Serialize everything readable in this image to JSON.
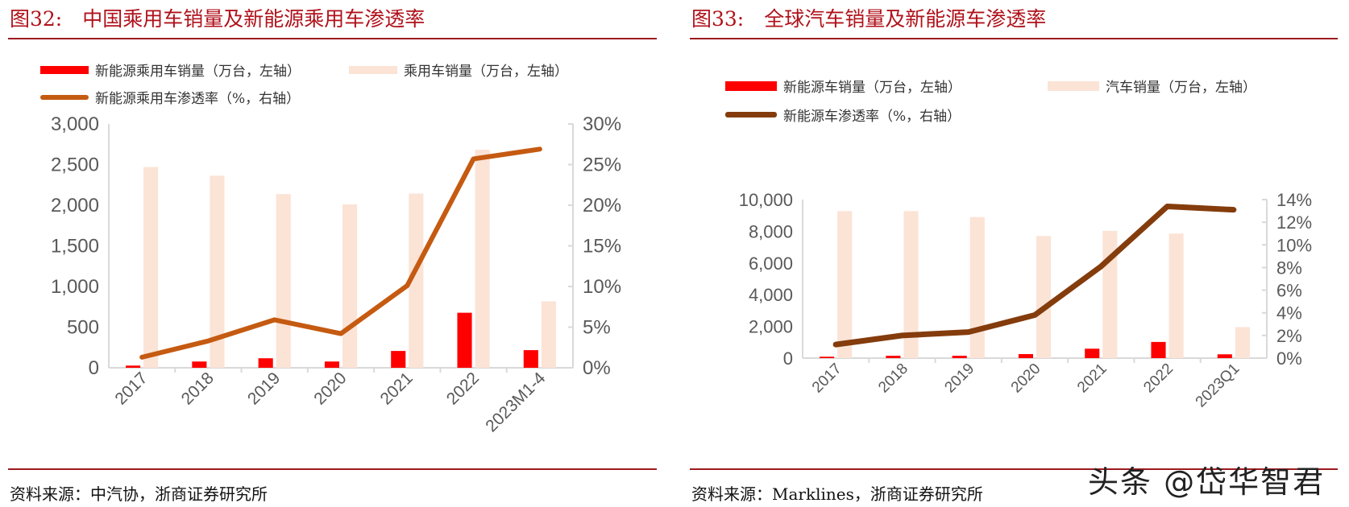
{
  "watermark": "头条 @岱华智君",
  "chart_data": [
    {
      "type": "bar+line",
      "title": "图32:　中国乘用车销量及新能源乘用车渗透率",
      "categories": [
        "2017",
        "2018",
        "2019",
        "2020",
        "2021",
        "2022",
        "2023M1-4"
      ],
      "series": [
        {
          "name": "新能源乘用车销量（万台，左轴）",
          "type": "bar",
          "axis": "left",
          "color": "#ff0000",
          "values": [
            27,
            77,
            117,
            77,
            207,
            677,
            217
          ]
        },
        {
          "name": "乘用车销量（万台，左轴）",
          "type": "bar",
          "axis": "left",
          "color": "#fbe3d6",
          "values": [
            2470,
            2363,
            2137,
            2010,
            2143,
            2683,
            817
          ]
        },
        {
          "name": "新能源乘用车渗透率（%，右轴）",
          "type": "line",
          "axis": "right",
          "color": "#c55a11",
          "values": [
            1.3,
            3.3,
            5.9,
            4.2,
            10.1,
            25.7,
            26.9
          ]
        }
      ],
      "yleft": {
        "range": [
          0,
          3000
        ],
        "ticks": [
          "0",
          "500",
          "1,000",
          "1,500",
          "2,000",
          "2,500",
          "3,000"
        ]
      },
      "yright": {
        "range": [
          0,
          30
        ],
        "ticks": [
          "0%",
          "5%",
          "10%",
          "15%",
          "20%",
          "25%",
          "30%"
        ]
      },
      "source": "资料来源：中汽协，浙商证券研究所"
    },
    {
      "type": "bar+line",
      "title": "图33:　全球汽车销量及新能源车渗透率",
      "categories": [
        "2017",
        "2018",
        "2019",
        "2020",
        "2021",
        "2022",
        "2023Q1"
      ],
      "series": [
        {
          "name": "新能源车销量（万台，左轴）",
          "type": "bar",
          "axis": "left",
          "color": "#ff0000",
          "values": [
            90,
            150,
            150,
            255,
            595,
            1020,
            240
          ]
        },
        {
          "name": "汽车销量（万台，左轴）",
          "type": "bar",
          "axis": "left",
          "color": "#fbe3d6",
          "values": [
            9270,
            9270,
            8895,
            7700,
            8030,
            7860,
            1955
          ]
        },
        {
          "name": "新能源车渗透率（%，右轴）",
          "type": "line",
          "axis": "right",
          "color": "#843c0c",
          "values": [
            1.2,
            2.0,
            2.3,
            3.8,
            8.1,
            13.4,
            13.1
          ]
        }
      ],
      "yleft": {
        "range": [
          0,
          10000
        ],
        "ticks": [
          "0",
          "2,000",
          "4,000",
          "6,000",
          "8,000",
          "10,000"
        ]
      },
      "yright": {
        "range": [
          0,
          14
        ],
        "ticks": [
          "0%",
          "2%",
          "4%",
          "6%",
          "8%",
          "10%",
          "12%",
          "14%"
        ]
      },
      "source": "资料来源：Marklines，浙商证券研究所"
    }
  ]
}
